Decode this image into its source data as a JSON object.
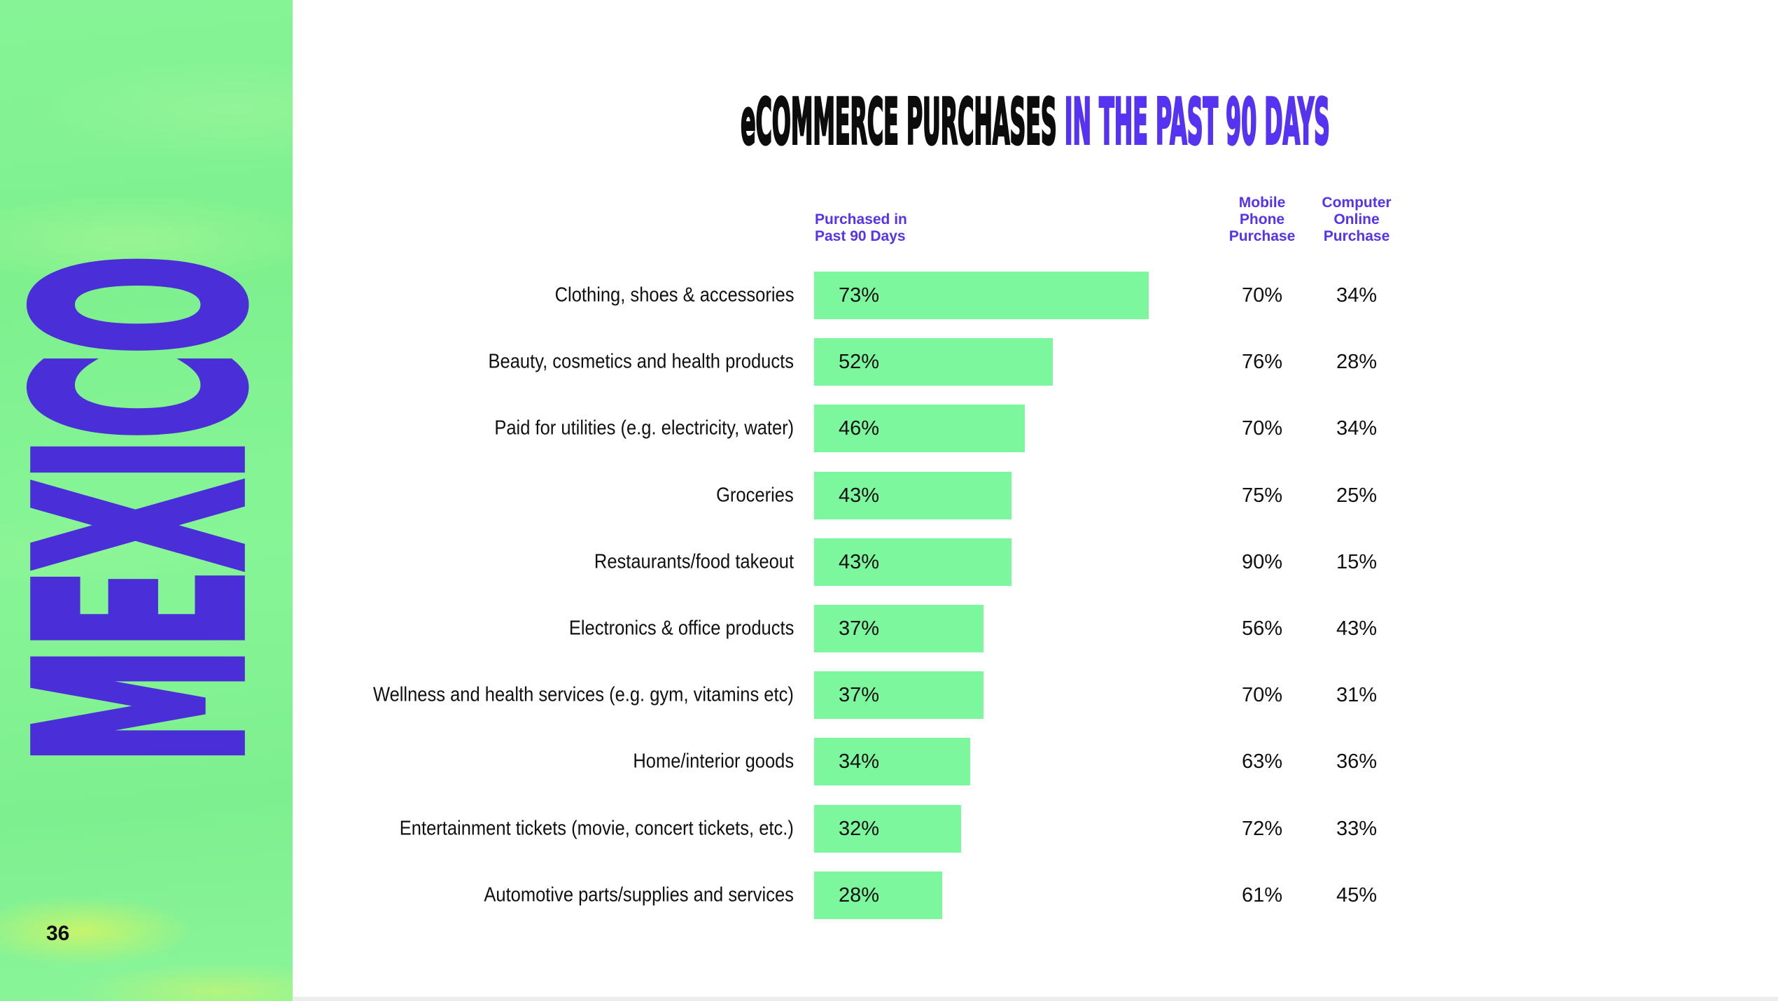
{
  "page": {
    "number": "36"
  },
  "sidebar": {
    "country": "MEXICO"
  },
  "title": {
    "black": "eCOMMERCE PURCHASES",
    "highlight": "IN THE PAST 90 DAYS"
  },
  "table_headers": {
    "col1": [
      "Purchased in",
      "Past 90 Days"
    ],
    "col2": [
      "Mobile",
      "Phone",
      "Purchase"
    ],
    "col3": [
      "Computer",
      "Online",
      "Purchase"
    ]
  },
  "chart_data": {
    "type": "bar",
    "orientation": "horizontal",
    "title": "eCOMMERCE PURCHASES IN THE PAST 90 DAYS",
    "categories": [
      "Clothing, shoes & accessories",
      "Beauty, cosmetics and health products",
      "Paid for utilities (e.g. electricity, water)",
      "Groceries",
      "Restaurants/food takeout",
      "Electronics & office products",
      "Wellness and health services (e.g. gym, vitamins etc)",
      "Home/interior goods",
      "Entertainment tickets (movie, concert tickets, etc.)",
      "Automotive parts/supplies and services"
    ],
    "series": [
      {
        "name": "Purchased in Past 90 Days",
        "unit": "%",
        "values": [
          73,
          52,
          46,
          43,
          43,
          37,
          37,
          34,
          32,
          28
        ]
      },
      {
        "name": "Mobile Phone Purchase",
        "unit": "%",
        "values": [
          70,
          76,
          70,
          75,
          90,
          56,
          70,
          63,
          72,
          61
        ]
      },
      {
        "name": "Computer Online Purchase",
        "unit": "%",
        "values": [
          34,
          28,
          34,
          25,
          15,
          43,
          31,
          36,
          33,
          45
        ]
      }
    ],
    "xlim": [
      0,
      100
    ],
    "value_label_position": "inside-left",
    "grid": false,
    "legend": false
  },
  "colors": {
    "accent_purple": "#5633f0",
    "mexico_purple": "#4a2ed8",
    "sidebar_green": "#82f191",
    "bar_green": "#7cf79e",
    "ink": "#0d0d0d"
  }
}
